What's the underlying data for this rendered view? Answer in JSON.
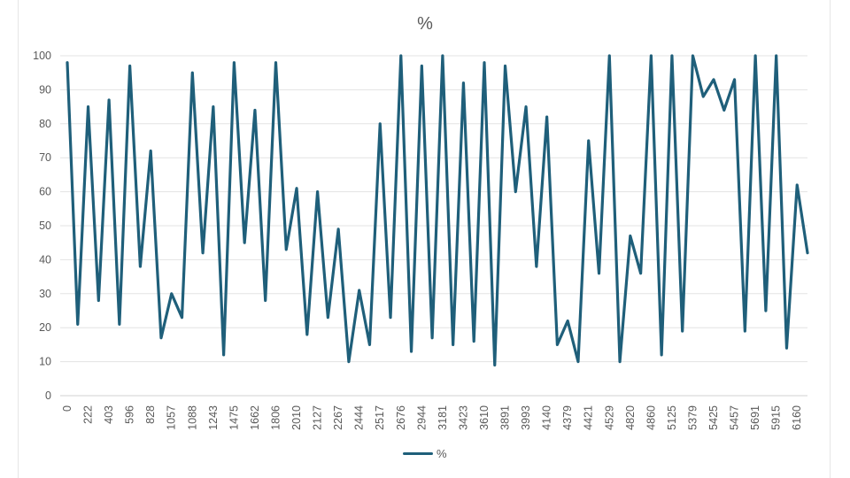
{
  "chart_data": {
    "type": "line",
    "title": "%",
    "xlabel": "",
    "ylabel": "",
    "ylim": [
      0,
      100
    ],
    "yticks": [
      0,
      10,
      20,
      30,
      40,
      50,
      60,
      70,
      80,
      90,
      100
    ],
    "grid": true,
    "legend": "bottom",
    "series_color": "#1f5f7a",
    "x_tick_labels": [
      "0",
      "222",
      "403",
      "596",
      "828",
      "1057",
      "1088",
      "1243",
      "1475",
      "1662",
      "1806",
      "2010",
      "2127",
      "2267",
      "2444",
      "2517",
      "2676",
      "2944",
      "3181",
      "3423",
      "3610",
      "3891",
      "3993",
      "4140",
      "4379",
      "4421",
      "4529",
      "4820",
      "4860",
      "5125",
      "5379",
      "5425",
      "5457",
      "5691",
      "5915",
      "6160"
    ],
    "series": [
      {
        "name": "%",
        "values": [
          98,
          21,
          85,
          28,
          87,
          21,
          97,
          38,
          72,
          17,
          30,
          23,
          95,
          42,
          85,
          12,
          98,
          45,
          84,
          28,
          98,
          43,
          61,
          18,
          60,
          23,
          49,
          10,
          31,
          15,
          80,
          23,
          100,
          13,
          97,
          17,
          100,
          15,
          92,
          16,
          98,
          9,
          97,
          60,
          85,
          38,
          82,
          15,
          22,
          10,
          75,
          36,
          100,
          10,
          47,
          36,
          100,
          12,
          100,
          19,
          100,
          88,
          93,
          84,
          93,
          19,
          100,
          25,
          100,
          14,
          62,
          42
        ]
      }
    ]
  }
}
